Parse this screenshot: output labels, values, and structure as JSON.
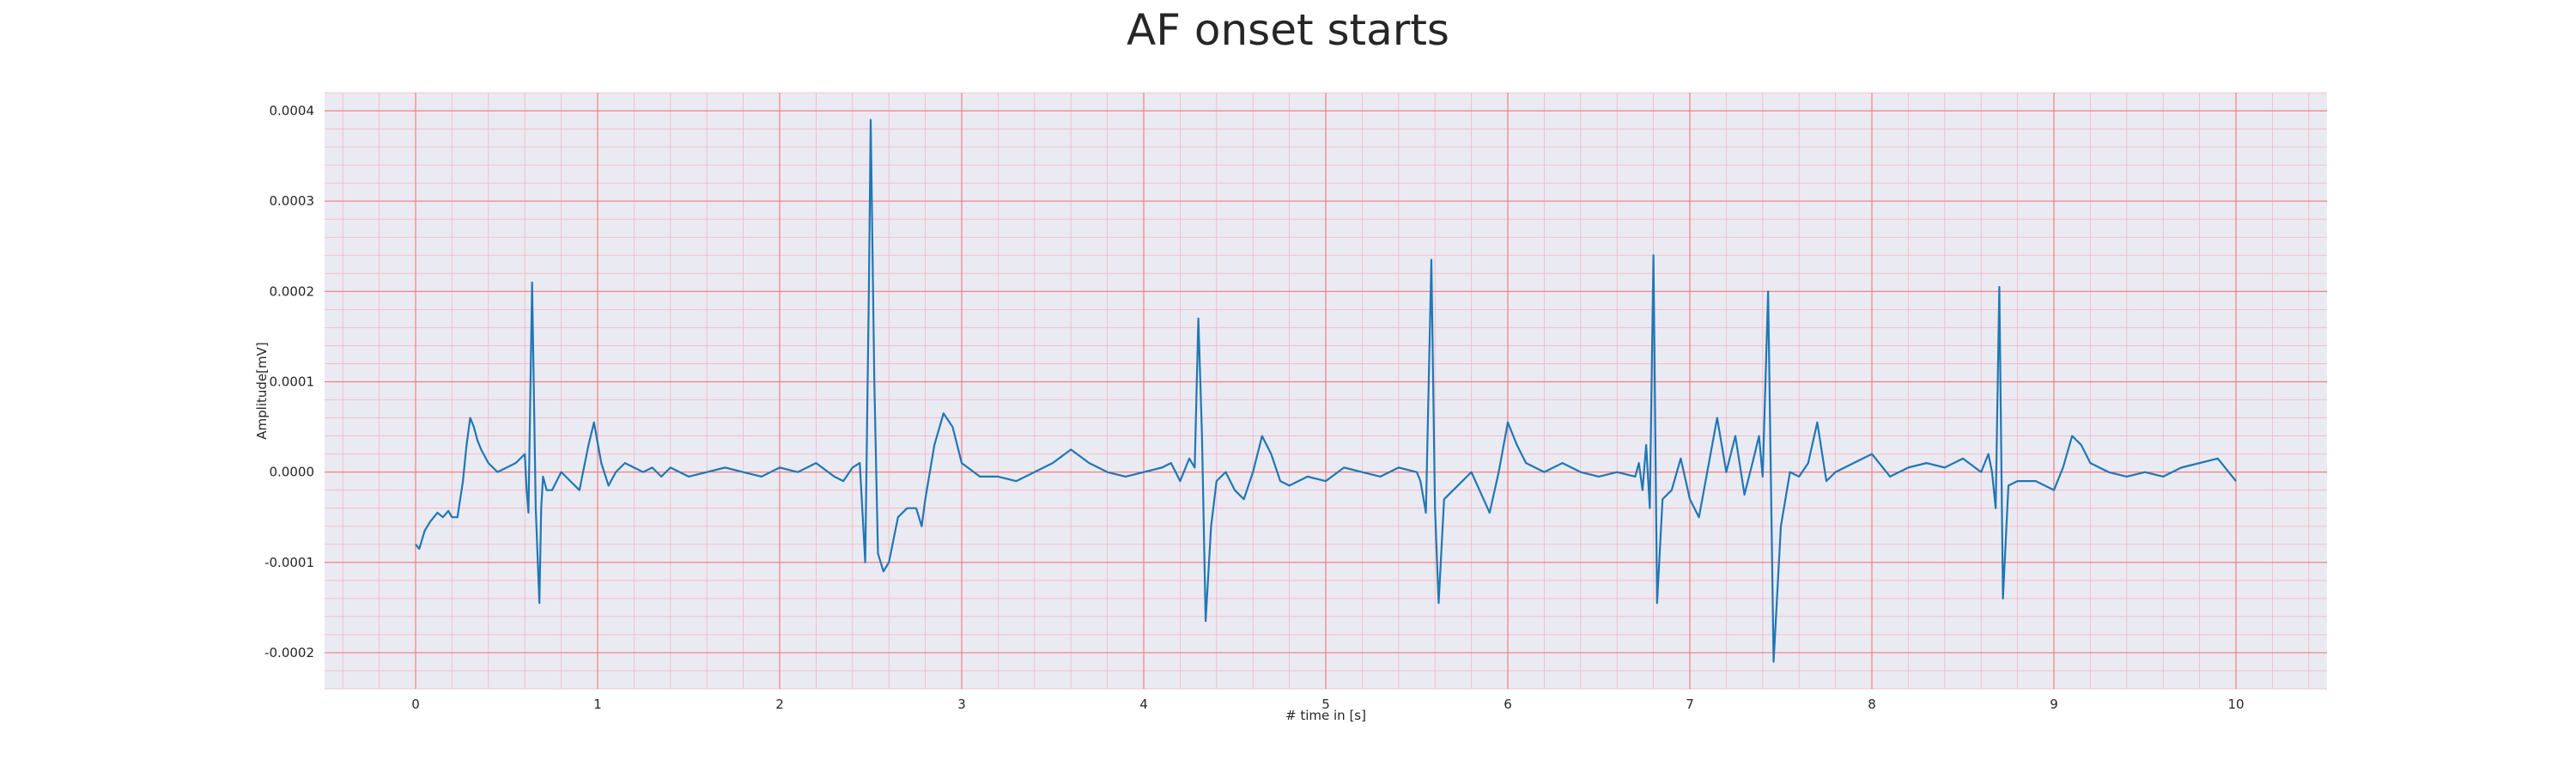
{
  "chart_data": {
    "type": "line",
    "title": "AF onset starts",
    "xlabel": "# time in [s]",
    "ylabel": "Amplitude[mV]",
    "xlim": [
      -0.5,
      10.5
    ],
    "ylim": [
      -0.00024,
      0.00042
    ],
    "x_ticks": [
      0,
      1,
      2,
      3,
      4,
      5,
      6,
      7,
      8,
      9,
      10
    ],
    "y_ticks": [
      -0.0002,
      -0.0001,
      0.0,
      0.0001,
      0.0002,
      0.0003,
      0.0004
    ],
    "y_tick_labels": [
      "-0.0002",
      "-0.0001",
      "0.0000",
      "0.0001",
      "0.0002",
      "0.0003",
      "0.0004"
    ],
    "grid": true,
    "minor_grid": true,
    "colors": {
      "line": "#1f77b4",
      "plot_background": "#eaeaf2",
      "major_grid": "#f08080",
      "minor_grid": "#f4b6c2"
    },
    "series": [
      {
        "x": [
          0.0,
          0.02,
          0.05,
          0.08,
          0.1,
          0.12,
          0.15,
          0.18,
          0.2,
          0.23,
          0.26,
          0.28,
          0.3,
          0.32,
          0.34,
          0.36,
          0.4,
          0.45,
          0.5,
          0.55,
          0.6,
          0.61,
          0.62,
          0.64,
          0.66,
          0.68,
          0.69,
          0.7,
          0.72,
          0.75,
          0.8,
          0.85,
          0.9,
          0.95,
          0.98,
          1.02,
          1.06,
          1.1,
          1.15,
          1.2,
          1.25,
          1.3,
          1.35,
          1.4,
          1.5,
          1.6,
          1.7,
          1.8,
          1.9,
          2.0,
          2.1,
          2.2,
          2.3,
          2.35,
          2.4,
          2.44,
          2.47,
          2.49,
          2.5,
          2.52,
          2.54,
          2.57,
          2.6,
          2.65,
          2.7,
          2.75,
          2.78,
          2.8,
          2.85,
          2.9,
          2.95,
          3.0,
          3.1,
          3.2,
          3.3,
          3.4,
          3.5,
          3.6,
          3.7,
          3.8,
          3.9,
          4.0,
          4.1,
          4.15,
          4.2,
          4.25,
          4.28,
          4.3,
          4.32,
          4.34,
          4.37,
          4.4,
          4.45,
          4.5,
          4.55,
          4.6,
          4.65,
          4.7,
          4.75,
          4.8,
          4.9,
          5.0,
          5.1,
          5.2,
          5.3,
          5.4,
          5.5,
          5.52,
          5.55,
          5.58,
          5.6,
          5.62,
          5.65,
          5.7,
          5.8,
          5.9,
          5.95,
          6.0,
          6.05,
          6.1,
          6.2,
          6.3,
          6.4,
          6.5,
          6.6,
          6.7,
          6.72,
          6.74,
          6.76,
          6.78,
          6.8,
          6.82,
          6.85,
          6.9,
          6.95,
          7.0,
          7.05,
          7.1,
          7.15,
          7.2,
          7.25,
          7.3,
          7.35,
          7.38,
          7.4,
          7.43,
          7.46,
          7.5,
          7.55,
          7.6,
          7.65,
          7.7,
          7.75,
          7.8,
          7.9,
          8.0,
          8.1,
          8.2,
          8.3,
          8.4,
          8.5,
          8.6,
          8.64,
          8.66,
          8.68,
          8.7,
          8.72,
          8.75,
          8.8,
          8.9,
          8.95,
          9.0,
          9.05,
          9.1,
          9.15,
          9.2,
          9.3,
          9.4,
          9.5,
          9.6,
          9.7,
          9.8,
          9.9,
          10.0
        ],
        "y": [
          -8e-05,
          -8.5e-05,
          -6.5e-05,
          -5.5e-05,
          -5e-05,
          -4.5e-05,
          -5e-05,
          -4.3e-05,
          -5e-05,
          -5e-05,
          -1e-05,
          3e-05,
          6e-05,
          5e-05,
          3.5e-05,
          2.5e-05,
          1e-05,
          0.0,
          5e-06,
          1e-05,
          2e-05,
          -2e-05,
          -4.5e-05,
          0.00021,
          -4e-05,
          -0.000145,
          -4e-05,
          -5e-06,
          -2e-05,
          -2e-05,
          0.0,
          -1e-05,
          -2e-05,
          3e-05,
          5.5e-05,
          1e-05,
          -1.5e-05,
          0.0,
          1e-05,
          5e-06,
          0.0,
          5e-06,
          -5e-06,
          5e-06,
          -5e-06,
          0.0,
          5e-06,
          0.0,
          -5e-06,
          5e-06,
          0.0,
          1e-05,
          -5e-06,
          -1e-05,
          5e-06,
          1e-05,
          -0.0001,
          0.0002,
          0.00039,
          0.0001,
          -9e-05,
          -0.00011,
          -0.0001,
          -5e-05,
          -4e-05,
          -4e-05,
          -6e-05,
          -3e-05,
          3e-05,
          6.5e-05,
          5e-05,
          1e-05,
          -5e-06,
          -5e-06,
          -1e-05,
          0.0,
          1e-05,
          2.5e-05,
          1e-05,
          0.0,
          -5e-06,
          0.0,
          5e-06,
          1e-05,
          -1e-05,
          1.5e-05,
          5e-06,
          0.00017,
          4e-05,
          -0.000165,
          -6e-05,
          -1e-05,
          0.0,
          -2e-05,
          -3e-05,
          0.0,
          4e-05,
          2e-05,
          -1e-05,
          -1.5e-05,
          -5e-06,
          -1e-05,
          5e-06,
          0.0,
          -5e-06,
          5e-06,
          0.0,
          -1e-05,
          -4.5e-05,
          0.000235,
          -4e-05,
          -0.000145,
          -3e-05,
          -2e-05,
          0.0,
          -4.5e-05,
          0.0,
          5.5e-05,
          3e-05,
          1e-05,
          0.0,
          1e-05,
          0.0,
          -5e-06,
          0.0,
          -5e-06,
          1e-05,
          -2e-05,
          3e-05,
          -4e-05,
          0.00024,
          -0.000145,
          -3e-05,
          -2e-05,
          1.5e-05,
          -3e-05,
          -5e-05,
          5e-06,
          6e-05,
          0.0,
          4e-05,
          -2.5e-05,
          1.5e-05,
          4e-05,
          -5e-06,
          0.0002,
          -0.00021,
          -6e-05,
          0.0,
          -5e-06,
          1e-05,
          5.5e-05,
          -1e-05,
          0.0,
          1e-05,
          2e-05,
          -5e-06,
          5e-06,
          1e-05,
          5e-06,
          1.5e-05,
          0.0,
          2e-05,
          0.0,
          -4e-05,
          0.000205,
          -0.00014,
          -1.5e-05,
          -1e-05,
          -1e-05,
          -1.5e-05,
          -2e-05,
          5e-06,
          4e-05,
          3e-05,
          1e-05,
          0.0,
          -5e-06,
          0.0,
          -5e-06,
          5e-06,
          1e-05,
          1.5e-05,
          -1e-05
        ]
      }
    ]
  }
}
